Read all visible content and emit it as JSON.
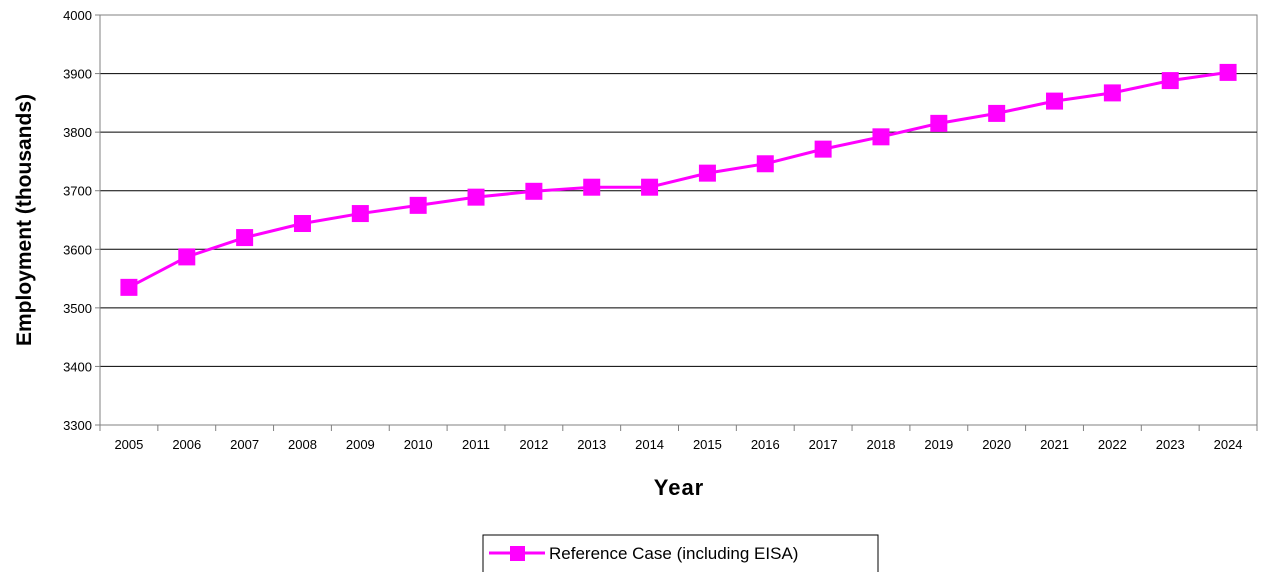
{
  "chart_data": {
    "type": "line",
    "title": "",
    "xlabel": "Year",
    "ylabel": "Employment (thousands)",
    "ylim": [
      3300,
      4000
    ],
    "yticks": [
      3300,
      3400,
      3500,
      3600,
      3700,
      3800,
      3900,
      4000
    ],
    "grid": "horizontal",
    "legend_position": "bottom-center",
    "categories": [
      "2005",
      "2006",
      "2007",
      "2008",
      "2009",
      "2010",
      "2011",
      "2012",
      "2013",
      "2014",
      "2015",
      "2016",
      "2017",
      "2018",
      "2019",
      "2020",
      "2021",
      "2022",
      "2023",
      "2024"
    ],
    "series": [
      {
        "name": "Reference Case (including EISA)",
        "color": "#ff00ff",
        "marker": "square",
        "values": [
          3535,
          3587,
          3620,
          3644,
          3661,
          3675,
          3689,
          3699,
          3706,
          3706,
          3730,
          3746,
          3771,
          3792,
          3815,
          3832,
          3853,
          3867,
          3888,
          3902
        ]
      }
    ]
  }
}
